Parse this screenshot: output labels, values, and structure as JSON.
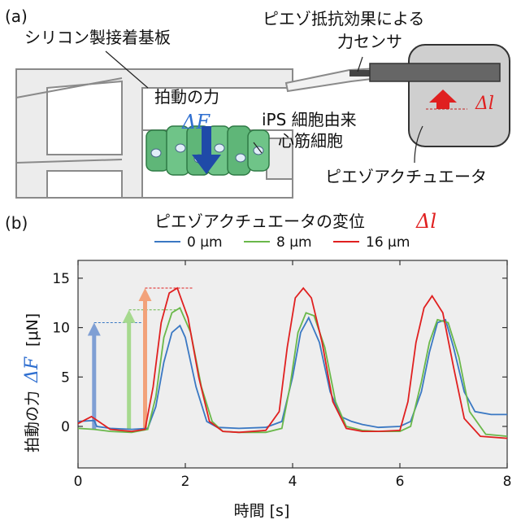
{
  "panel_a": {
    "label": "(a)",
    "substrate_label": "シリコン製接着基板",
    "sensor_label_line1": "ピエゾ抵抗効果による",
    "sensor_label_line2": "力センサ",
    "force_label": "拍動の力",
    "force_symbol": "ΔF",
    "cells_label_line1": "iPS 細胞由来",
    "cells_label_line2": "心筋細胞",
    "actuator_label": "ピエゾアクチュエータ",
    "displacement_symbol": "Δl"
  },
  "panel_b": {
    "label": "(b)",
    "legend_title": "ピエゾアクチュエータの変位",
    "legend_symbol": "Δl"
  },
  "colors": {
    "blue": "#3a78c3",
    "green": "#6ab84a",
    "red": "#e02020",
    "delta_blue": "#2f6fd0",
    "delta_red": "#e02020",
    "plot_bg": "#eeeeee"
  },
  "chart_data": {
    "type": "line",
    "xlabel": "時間 [s]",
    "ylabel_text": "拍動の力",
    "ylabel_symbol": "ΔF",
    "ylabel_unit": "[μN]",
    "xlim": [
      0,
      8
    ],
    "ylim": [
      -5,
      15
    ],
    "xticks": [
      "0",
      "2",
      "4",
      "6",
      "8"
    ],
    "yticks": [
      "0",
      "5",
      "10",
      "15"
    ],
    "series": [
      {
        "name": "0 μm",
        "color": "#3a78c3",
        "x": [
          0.0,
          0.3,
          0.35,
          0.6,
          1.0,
          1.3,
          1.45,
          1.6,
          1.75,
          1.9,
          2.0,
          2.2,
          2.4,
          2.6,
          3.0,
          3.5,
          3.8,
          4.0,
          4.15,
          4.3,
          4.5,
          4.7,
          4.9,
          5.1,
          5.3,
          5.6,
          6.0,
          6.2,
          6.4,
          6.55,
          6.7,
          6.85,
          7.0,
          7.2,
          7.4,
          7.7,
          8.0
        ],
        "y": [
          0.5,
          0.6,
          0.0,
          -0.2,
          -0.3,
          -0.2,
          2.0,
          6.5,
          9.5,
          10.2,
          9.0,
          4.0,
          0.5,
          -0.1,
          -0.2,
          -0.1,
          0.5,
          5.0,
          9.5,
          11.0,
          8.5,
          3.5,
          1.0,
          0.5,
          0.2,
          -0.1,
          0.0,
          0.5,
          3.5,
          7.5,
          10.5,
          10.8,
          8.0,
          3.5,
          1.5,
          1.2,
          1.2
        ]
      },
      {
        "name": "8 μm",
        "color": "#6ab84a",
        "x": [
          0.0,
          0.3,
          0.6,
          1.0,
          1.3,
          1.45,
          1.6,
          1.75,
          1.9,
          2.1,
          2.3,
          2.5,
          2.7,
          3.0,
          3.5,
          3.8,
          3.95,
          4.1,
          4.25,
          4.4,
          4.6,
          4.8,
          5.0,
          5.3,
          5.6,
          6.0,
          6.2,
          6.4,
          6.55,
          6.7,
          6.9,
          7.1,
          7.3,
          7.6,
          8.0
        ],
        "y": [
          -0.2,
          -0.3,
          -0.5,
          -0.6,
          -0.3,
          3.0,
          9.0,
          11.5,
          12.0,
          9.5,
          4.0,
          0.5,
          -0.5,
          -0.6,
          -0.6,
          -0.2,
          4.0,
          9.5,
          11.5,
          11.2,
          8.0,
          2.5,
          0.0,
          -0.4,
          -0.5,
          -0.5,
          0.0,
          4.5,
          8.5,
          10.8,
          10.5,
          7.0,
          1.5,
          -0.8,
          -1.0
        ]
      },
      {
        "name": "16 μm",
        "color": "#e02020",
        "x": [
          0.0,
          0.25,
          0.6,
          1.0,
          1.25,
          1.4,
          1.55,
          1.7,
          1.85,
          2.05,
          2.25,
          2.45,
          2.7,
          3.0,
          3.5,
          3.75,
          3.9,
          4.05,
          4.2,
          4.35,
          4.55,
          4.75,
          5.0,
          5.3,
          5.6,
          6.0,
          6.15,
          6.3,
          6.45,
          6.6,
          6.8,
          7.0,
          7.2,
          7.5,
          8.0
        ],
        "y": [
          0.3,
          1.0,
          -0.3,
          -0.5,
          -0.3,
          4.0,
          10.5,
          13.5,
          14.0,
          11.0,
          5.0,
          0.5,
          -0.5,
          -0.6,
          -0.4,
          1.5,
          8.0,
          13.0,
          14.0,
          13.0,
          8.5,
          2.5,
          -0.2,
          -0.5,
          -0.5,
          -0.4,
          2.5,
          8.5,
          12.0,
          13.2,
          11.5,
          6.0,
          0.8,
          -1.0,
          -1.2
        ]
      }
    ],
    "annotations": {
      "arrows_x": [
        0.3,
        0.95,
        1.25
      ],
      "arrow_tops": [
        10.5,
        11.8,
        14.0
      ],
      "arrow_colors": [
        "#7f9fd4",
        "#a6d98e",
        "#f2a27a"
      ]
    }
  }
}
